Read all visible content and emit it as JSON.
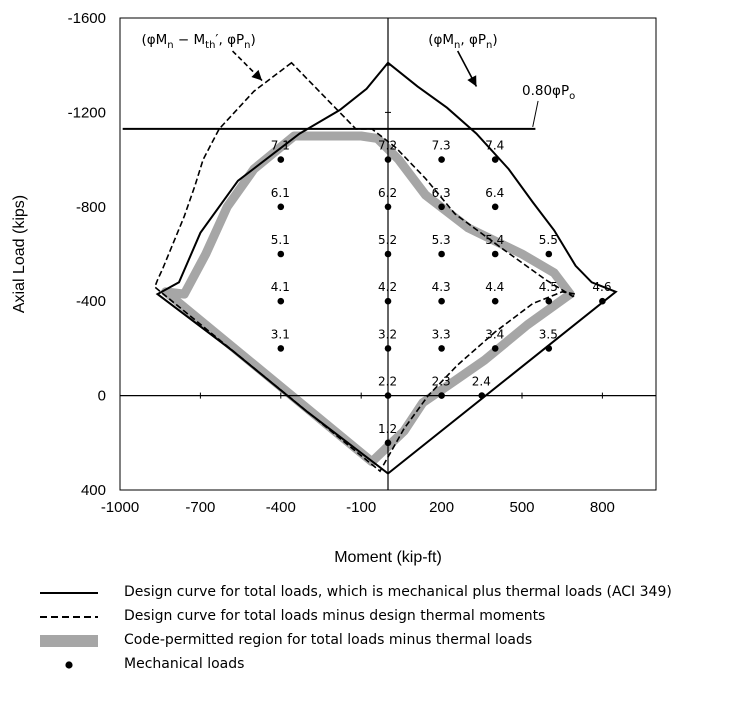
{
  "chart_data": {
    "type": "line",
    "title": "",
    "xlabel": "Moment (kip-ft)",
    "ylabel": "Axial Load (kips)",
    "xlim": [
      -1000,
      1000
    ],
    "ylim": [
      -1600,
      400
    ],
    "y_axis_inverted": true,
    "x_ticks": [
      "-1000",
      "-700",
      "-400",
      "-100",
      "200",
      "500",
      "800"
    ],
    "x_tick_values": [
      -1000,
      -700,
      -400,
      -100,
      200,
      500,
      800
    ],
    "y_ticks": [
      "-1600",
      "-1200",
      "-800",
      "-400",
      "0",
      "400"
    ],
    "y_tick_values": [
      -1600,
      -1200,
      -800,
      -400,
      0,
      400
    ],
    "grid": false,
    "legend_position": "bottom",
    "series": [
      {
        "name": "Design curve for total loads, which is mechanical plus thermal loads (ACI 349)",
        "style": "solid",
        "color": "#000000",
        "x": [
          0,
          110,
          220,
          330,
          450,
          540,
          620,
          700,
          760,
          850,
          0,
          -300,
          -580,
          -860,
          -780,
          -700,
          -560,
          -330,
          -180,
          -80,
          0
        ],
        "y": [
          -1410,
          -1310,
          -1220,
          -1110,
          -960,
          -820,
          -700,
          -550,
          -480,
          -440,
          330,
          70,
          -190,
          -430,
          -480,
          -690,
          -910,
          -1110,
          -1210,
          -1300,
          -1410
        ]
      },
      {
        "name": "Design curve for total loads minus design thermal moments",
        "style": "dashed",
        "color": "#000000",
        "x": [
          -360,
          -500,
          -630,
          -690,
          -720,
          -760,
          -800,
          -840,
          -860,
          -870,
          -30,
          60,
          150,
          260,
          400,
          540,
          650,
          700,
          690,
          590,
          430,
          250,
          140,
          30,
          -60,
          -120
        ],
        "y": [
          -1410,
          -1290,
          -1130,
          -1000,
          -890,
          -760,
          -650,
          -540,
          -490,
          -460,
          320,
          140,
          0,
          -130,
          -270,
          -390,
          -440,
          -430,
          -420,
          -490,
          -620,
          -770,
          -920,
          -1050,
          -1130,
          -1130
        ]
      },
      {
        "name": "Code-permitted region for total loads minus thermal loads",
        "style": "band",
        "color": "#a6a6a6",
        "x": [
          -350,
          -500,
          -600,
          -680,
          -760,
          -830,
          -60,
          60,
          130,
          220,
          360,
          520,
          680,
          620,
          500,
          300,
          140,
          40,
          -40,
          -100,
          -350
        ],
        "y": [
          -1100,
          -960,
          -800,
          -600,
          -430,
          -440,
          280,
          150,
          30,
          -40,
          -150,
          -300,
          -430,
          -520,
          -600,
          -710,
          -850,
          -1000,
          -1090,
          -1100,
          -1100
        ]
      },
      {
        "name": "Mechanical loads",
        "style": "points",
        "color": "#000000",
        "points": [
          {
            "label": "1.2",
            "x": 0,
            "y": 200
          },
          {
            "label": "2.2",
            "x": 0,
            "y": 0
          },
          {
            "label": "2.3",
            "x": 200,
            "y": 0
          },
          {
            "label": "2.4",
            "x": 350,
            "y": 0
          },
          {
            "label": "3.1",
            "x": -400,
            "y": -200
          },
          {
            "label": "3.2",
            "x": 0,
            "y": -200
          },
          {
            "label": "3.3",
            "x": 200,
            "y": -200
          },
          {
            "label": "3.4",
            "x": 400,
            "y": -200
          },
          {
            "label": "3.5",
            "x": 600,
            "y": -200
          },
          {
            "label": "4.1",
            "x": -400,
            "y": -400
          },
          {
            "label": "4.2",
            "x": 0,
            "y": -400
          },
          {
            "label": "4.3",
            "x": 200,
            "y": -400
          },
          {
            "label": "4.4",
            "x": 400,
            "y": -400
          },
          {
            "label": "4.5",
            "x": 600,
            "y": -400
          },
          {
            "label": "4.6",
            "x": 800,
            "y": -400
          },
          {
            "label": "5.1",
            "x": -400,
            "y": -600
          },
          {
            "label": "5.2",
            "x": 0,
            "y": -600
          },
          {
            "label": "5.3",
            "x": 200,
            "y": -600
          },
          {
            "label": "5.4",
            "x": 400,
            "y": -600
          },
          {
            "label": "5.5",
            "x": 600,
            "y": -600
          },
          {
            "label": "6.1",
            "x": -400,
            "y": -800
          },
          {
            "label": "6.2",
            "x": 0,
            "y": -800
          },
          {
            "label": "6.3",
            "x": 200,
            "y": -800
          },
          {
            "label": "6.4",
            "x": 400,
            "y": -800
          },
          {
            "label": "7.1",
            "x": -400,
            "y": -1000
          },
          {
            "label": "7.2",
            "x": 0,
            "y": -1000
          },
          {
            "label": "7.3",
            "x": 200,
            "y": -1000
          },
          {
            "label": "7.4",
            "x": 400,
            "y": -1000
          }
        ]
      }
    ],
    "reference_lines": [
      {
        "label": "0.80φP",
        "subscript": "o",
        "y": -1130,
        "x_range": [
          -990,
          550
        ]
      }
    ],
    "annotations": [
      {
        "text": "(φM",
        "sub1": "n",
        "mid": " − M",
        "sub2": "th",
        "tail": "′, φP",
        "sub3": "n",
        "end": ")",
        "x": -920,
        "y": -1490
      },
      {
        "text": "(φM",
        "sub1": "n",
        "mid": ", φP",
        "sub2": "n",
        "end": ")",
        "x": 150,
        "y": -1490
      }
    ]
  }
}
